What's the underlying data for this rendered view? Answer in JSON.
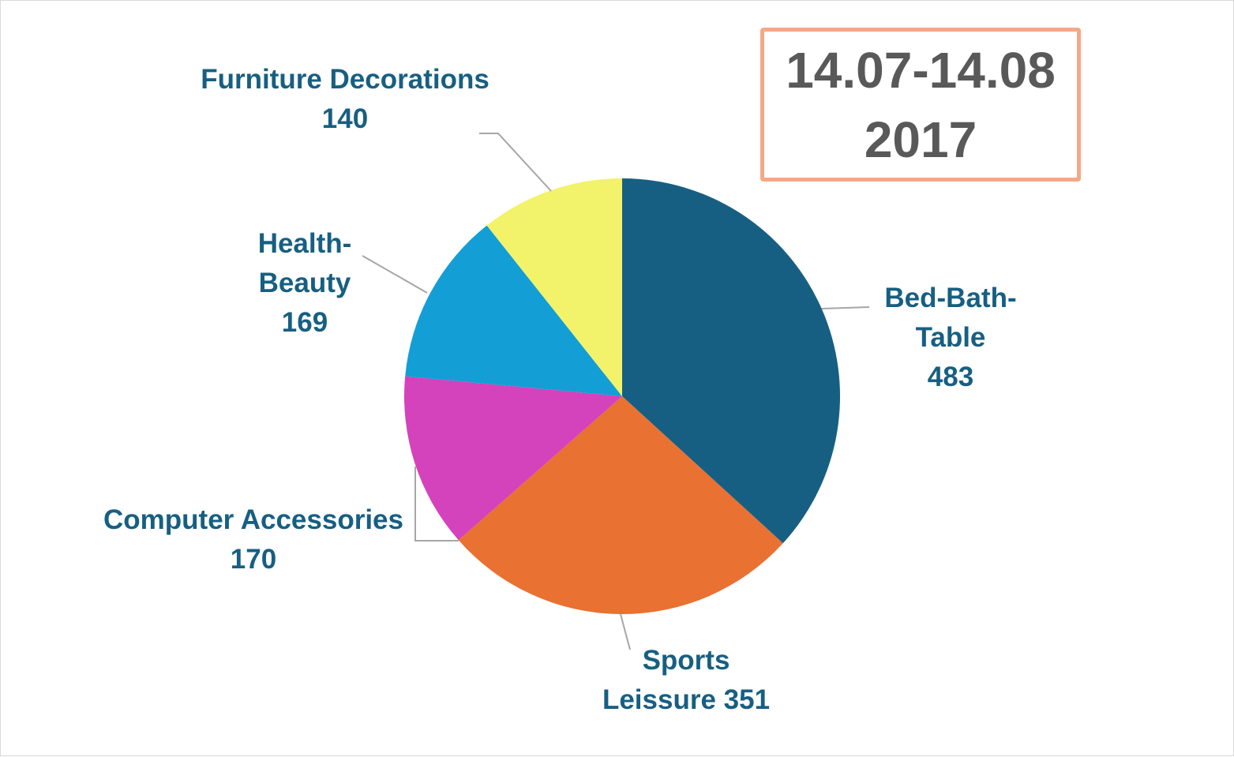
{
  "chart_data": {
    "type": "pie",
    "title": "",
    "categories": [
      "Bed-Bath-Table",
      "Sports Leissure",
      "Computer Accessories",
      "Health-Beauty",
      "Furniture Decorations"
    ],
    "values": [
      483,
      351,
      170,
      169,
      140
    ],
    "colors": [
      "#175f82",
      "#e97132",
      "#d442bc",
      "#139ed6",
      "#f2f26b"
    ],
    "label_color": "#175f82",
    "labels": [
      {
        "lines": [
          "Bed-Bath-",
          "Table",
          "483"
        ]
      },
      {
        "lines": [
          "Sports",
          "Leissure 351"
        ]
      },
      {
        "lines": [
          "Computer Accessories",
          "170"
        ]
      },
      {
        "lines": [
          "Health-",
          "Beauty",
          "169"
        ]
      },
      {
        "lines": [
          "Furniture Decorations",
          "140"
        ]
      }
    ],
    "legend": "none"
  },
  "date_box": {
    "line1": "14.07-14.08",
    "line2": "2017",
    "border_color": "#f4a886",
    "text_color": "#595959"
  }
}
